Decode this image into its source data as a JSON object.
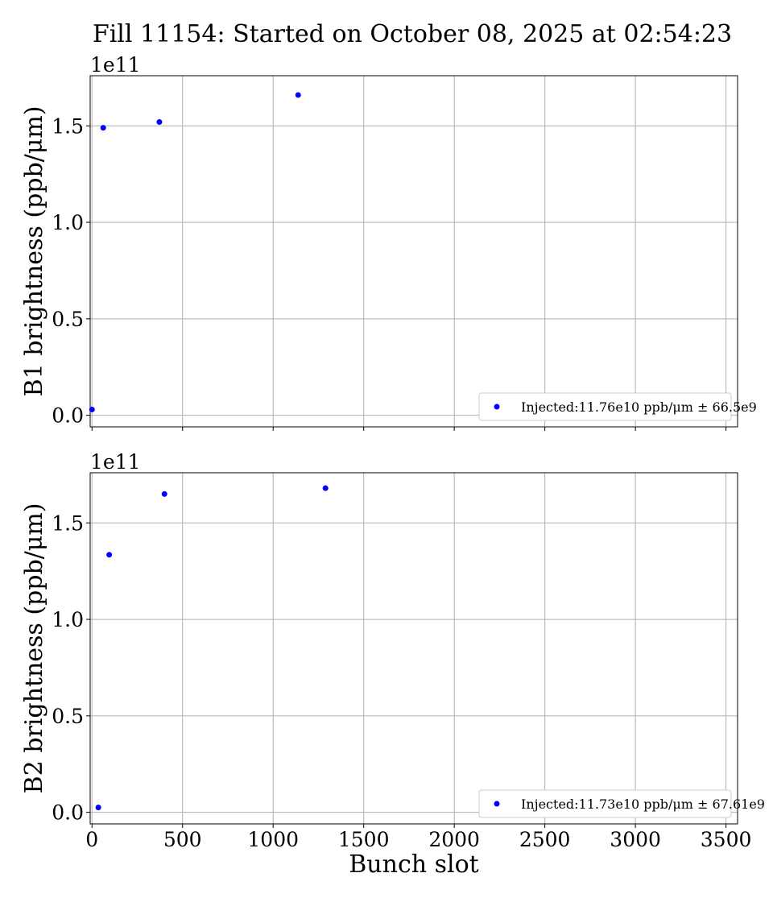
{
  "chart_data": [
    {
      "type": "scatter",
      "title": "Fill 11154: Started on October 08, 2025 at 02:54:23",
      "xlabel": "",
      "ylabel": "B1 brightness (ppb/μm)",
      "y_offset_label": "1e11",
      "xlim": [
        -10,
        3564
      ],
      "ylim": [
        -6000000000.0,
        176000000000.0
      ],
      "x_ticks": [
        0,
        500,
        1000,
        1500,
        2000,
        2500,
        3000,
        3500
      ],
      "x_tick_labels": [
        "",
        "",
        "",
        "",
        "",
        "",
        "",
        ""
      ],
      "y_ticks": [
        0.0,
        50000000000.0,
        100000000000.0,
        150000000000.0
      ],
      "y_tick_labels": [
        "0.0",
        "0.5",
        "1.0",
        "1.5"
      ],
      "grid": true,
      "legend_position": "lower-right",
      "color": "#0000ff",
      "series": [
        {
          "name": "Injected:11.76e10 ppb/μm ± 66.5e9",
          "x": [
            0,
            62,
            372,
            1138
          ],
          "y": [
            3000000000.0,
            149000000000.0,
            152000000000.0,
            166000000000.0
          ]
        }
      ]
    },
    {
      "type": "scatter",
      "title": "",
      "xlabel": "Bunch slot",
      "ylabel": "B2 brightness (ppb/μm)",
      "y_offset_label": "1e11",
      "xlim": [
        -10,
        3564
      ],
      "ylim": [
        -6000000000.0,
        176000000000.0
      ],
      "x_ticks": [
        0,
        500,
        1000,
        1500,
        2000,
        2500,
        3000,
        3500
      ],
      "x_tick_labels": [
        "0",
        "500",
        "1000",
        "1500",
        "2000",
        "2500",
        "3000",
        "3500"
      ],
      "y_ticks": [
        0.0,
        50000000000.0,
        100000000000.0,
        150000000000.0
      ],
      "y_tick_labels": [
        "0.0",
        "0.5",
        "1.0",
        "1.5"
      ],
      "grid": true,
      "legend_position": "lower-right",
      "color": "#0000ff",
      "series": [
        {
          "name": "Injected:11.73e10 ppb/μm ± 67.61e9",
          "x": [
            35,
            95,
            400,
            1289
          ],
          "y": [
            2500000000.0,
            133500000000.0,
            165000000000.0,
            168000000000.0
          ]
        }
      ]
    }
  ]
}
